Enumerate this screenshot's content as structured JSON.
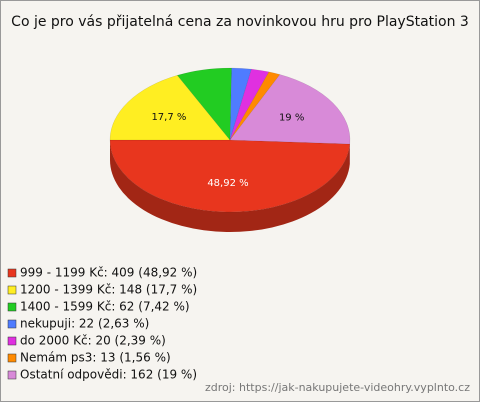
{
  "chart_data": {
    "type": "pie3d",
    "title": "Co je pro vás přijatelná cena za novinkovou hru pro PlayStation 3",
    "categories": [
      "999 - 1199 Kč: 409 (48,92 %)",
      "1200 - 1399 Kč: 148 (17,7 %)",
      "1400 - 1599 Kč: 62 (7,42 %)",
      "nekupuji: 22 (2,63 %)",
      "do 2000 Kč: 20 (2,39 %)",
      "Nemám ps3: 13 (1,56 %)",
      "Ostatní odpovědi: 162 (19 %)"
    ],
    "values": [
      48.92,
      17.7,
      7.42,
      2.63,
      2.39,
      1.56,
      19
    ],
    "value_labels": [
      "48,92 %",
      "17,7 %",
      null,
      null,
      null,
      null,
      "19 %"
    ],
    "colors": [
      "#e8361e",
      "#ffee22",
      "#22cc22",
      "#4f7cff",
      "#e030e0",
      "#ff8a00",
      "#d88ad8"
    ],
    "source": "zdroj: https://jak-nakupujete-videohry.vyplnto.cz"
  }
}
